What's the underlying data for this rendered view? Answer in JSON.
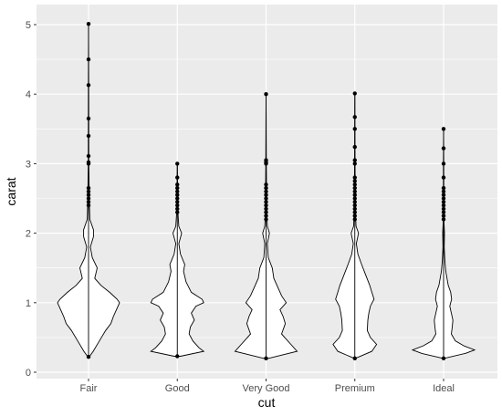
{
  "chart_data": {
    "type": "violin",
    "xlabel": "cut",
    "ylabel": "carat",
    "ylim": [
      0,
      5.1
    ],
    "yticks": [
      0,
      1,
      2,
      3,
      4,
      5
    ],
    "ytick_labels": [
      "0",
      "1",
      "2",
      "3",
      "4",
      "5"
    ],
    "categories": [
      "Fair",
      "Good",
      "Very Good",
      "Premium",
      "Ideal"
    ],
    "grid": true,
    "background": "#EBEBEB",
    "violin_fill": "#FFFFFF",
    "violin_stroke": "#000000",
    "series": [
      {
        "category": "Fair",
        "min": 0.22,
        "max": 5.01,
        "outliers": [
          2.4,
          2.45,
          2.5,
          2.55,
          2.6,
          2.65,
          3.0,
          3.02,
          3.11,
          3.4,
          3.65,
          4.13,
          4.5,
          5.01
        ],
        "density": [
          [
            0.22,
            0.02
          ],
          [
            0.3,
            0.15
          ],
          [
            0.45,
            0.35
          ],
          [
            0.6,
            0.55
          ],
          [
            0.7,
            0.72
          ],
          [
            0.8,
            0.8
          ],
          [
            0.9,
            0.9
          ],
          [
            1.0,
            1.0
          ],
          [
            1.05,
            0.92
          ],
          [
            1.15,
            0.68
          ],
          [
            1.25,
            0.4
          ],
          [
            1.35,
            0.2
          ],
          [
            1.5,
            0.28
          ],
          [
            1.65,
            0.12
          ],
          [
            1.8,
            0.06
          ],
          [
            1.95,
            0.16
          ],
          [
            2.05,
            0.16
          ],
          [
            2.2,
            0.04
          ],
          [
            2.5,
            0.025
          ],
          [
            3.0,
            0.01
          ],
          [
            4.0,
            0.005
          ],
          [
            5.01,
            0.0
          ]
        ]
      },
      {
        "category": "Good",
        "min": 0.23,
        "max": 3.01,
        "outliers": [
          2.3,
          2.35,
          2.4,
          2.45,
          2.5,
          2.55,
          2.6,
          2.65,
          2.7,
          2.8,
          3.0
        ],
        "density": [
          [
            0.23,
            0.1
          ],
          [
            0.3,
            0.85
          ],
          [
            0.35,
            0.7
          ],
          [
            0.45,
            0.5
          ],
          [
            0.55,
            0.38
          ],
          [
            0.65,
            0.42
          ],
          [
            0.75,
            0.55
          ],
          [
            0.85,
            0.45
          ],
          [
            0.95,
            0.6
          ],
          [
            1.0,
            0.85
          ],
          [
            1.05,
            0.8
          ],
          [
            1.15,
            0.45
          ],
          [
            1.3,
            0.28
          ],
          [
            1.45,
            0.2
          ],
          [
            1.55,
            0.24
          ],
          [
            1.7,
            0.1
          ],
          [
            1.85,
            0.05
          ],
          [
            2.0,
            0.14
          ],
          [
            2.1,
            0.05
          ],
          [
            2.3,
            0.02
          ],
          [
            3.01,
            0.0
          ]
        ]
      },
      {
        "category": "Very Good",
        "min": 0.2,
        "max": 4.0,
        "outliers": [
          2.2,
          2.25,
          2.3,
          2.35,
          2.4,
          2.45,
          2.5,
          2.55,
          2.6,
          2.65,
          2.7,
          3.0,
          3.02,
          3.05,
          4.0
        ],
        "density": [
          [
            0.2,
            0.08
          ],
          [
            0.3,
            1.0
          ],
          [
            0.4,
            0.8
          ],
          [
            0.55,
            0.5
          ],
          [
            0.7,
            0.62
          ],
          [
            0.8,
            0.55
          ],
          [
            0.9,
            0.45
          ],
          [
            1.0,
            0.65
          ],
          [
            1.1,
            0.5
          ],
          [
            1.2,
            0.4
          ],
          [
            1.35,
            0.25
          ],
          [
            1.5,
            0.2
          ],
          [
            1.65,
            0.07
          ],
          [
            1.85,
            0.04
          ],
          [
            2.0,
            0.11
          ],
          [
            2.1,
            0.04
          ],
          [
            2.3,
            0.02
          ],
          [
            3.0,
            0.008
          ],
          [
            4.0,
            0.0
          ]
        ]
      },
      {
        "category": "Premium",
        "min": 0.2,
        "max": 4.01,
        "outliers": [
          2.2,
          2.25,
          2.3,
          2.35,
          2.4,
          2.45,
          2.5,
          2.55,
          2.6,
          2.65,
          2.7,
          2.75,
          2.8,
          3.0,
          3.05,
          3.24,
          3.5,
          3.67,
          4.01
        ],
        "density": [
          [
            0.2,
            0.02
          ],
          [
            0.3,
            0.55
          ],
          [
            0.4,
            0.7
          ],
          [
            0.5,
            0.5
          ],
          [
            0.6,
            0.4
          ],
          [
            0.75,
            0.42
          ],
          [
            0.85,
            0.45
          ],
          [
            0.95,
            0.5
          ],
          [
            1.05,
            0.62
          ],
          [
            1.15,
            0.55
          ],
          [
            1.25,
            0.48
          ],
          [
            1.4,
            0.35
          ],
          [
            1.55,
            0.22
          ],
          [
            1.7,
            0.1
          ],
          [
            1.85,
            0.05
          ],
          [
            2.0,
            0.12
          ],
          [
            2.1,
            0.04
          ],
          [
            2.3,
            0.02
          ],
          [
            3.0,
            0.008
          ],
          [
            4.01,
            0.0
          ]
        ]
      },
      {
        "category": "Ideal",
        "min": 0.2,
        "max": 3.5,
        "outliers": [
          2.2,
          2.25,
          2.3,
          2.35,
          2.4,
          2.45,
          2.5,
          2.55,
          2.6,
          2.65,
          2.8,
          3.0,
          3.22,
          3.5
        ],
        "density": [
          [
            0.2,
            0.02
          ],
          [
            0.27,
            0.7
          ],
          [
            0.32,
            1.0
          ],
          [
            0.38,
            0.65
          ],
          [
            0.45,
            0.38
          ],
          [
            0.55,
            0.25
          ],
          [
            0.65,
            0.28
          ],
          [
            0.75,
            0.3
          ],
          [
            0.85,
            0.25
          ],
          [
            0.95,
            0.2
          ],
          [
            1.05,
            0.26
          ],
          [
            1.15,
            0.23
          ],
          [
            1.25,
            0.15
          ],
          [
            1.45,
            0.07
          ],
          [
            1.6,
            0.04
          ],
          [
            1.8,
            0.02
          ],
          [
            2.0,
            0.03
          ],
          [
            2.2,
            0.01
          ],
          [
            3.0,
            0.005
          ],
          [
            3.5,
            0.0
          ]
        ]
      }
    ]
  }
}
